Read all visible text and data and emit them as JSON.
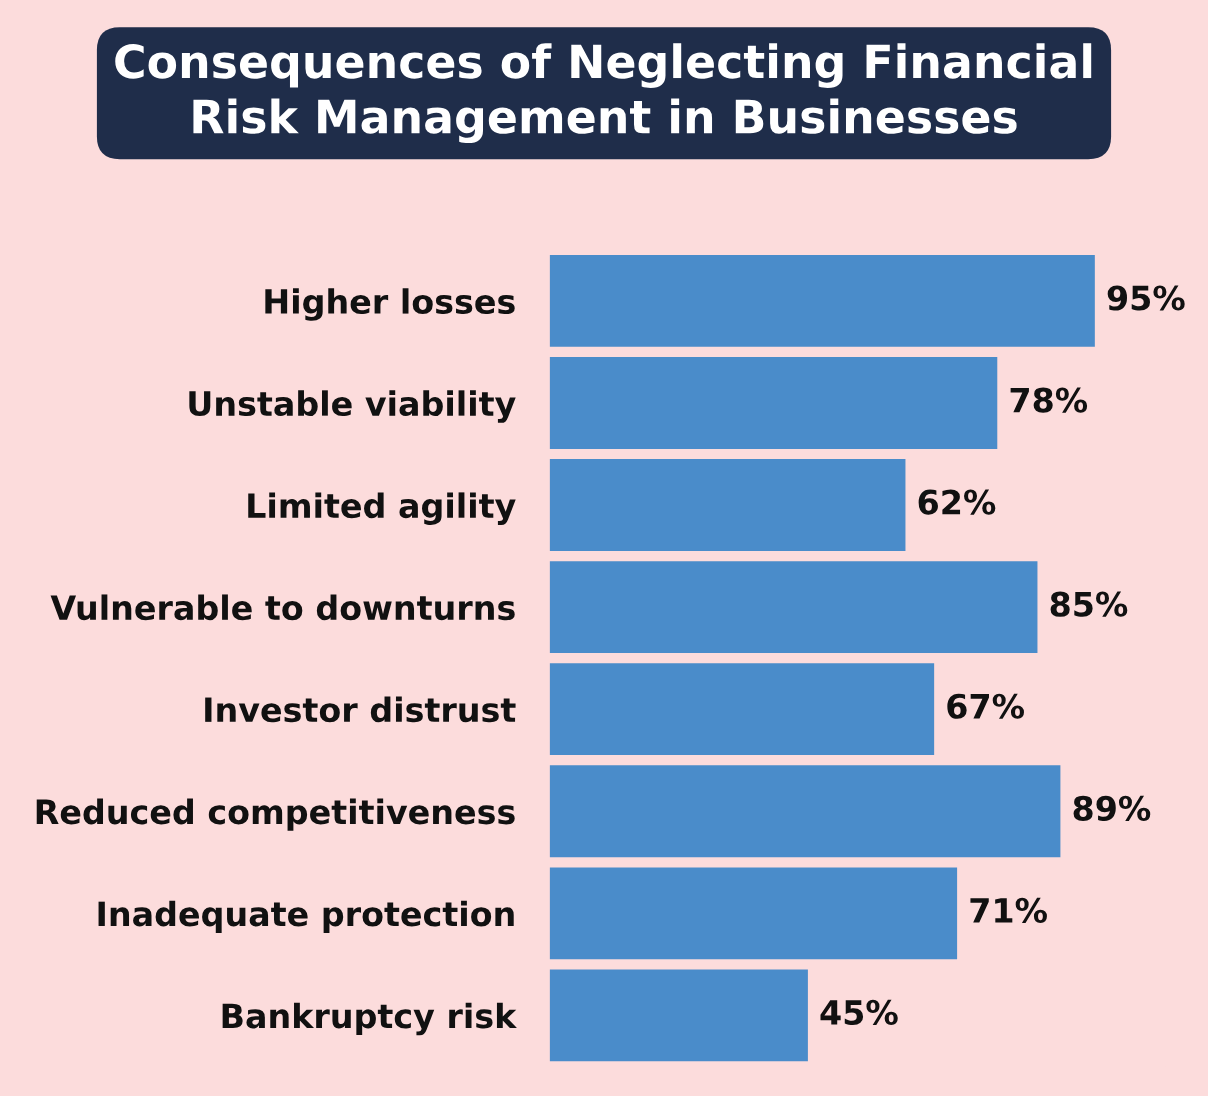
{
  "chart_data": {
    "type": "bar",
    "orientation": "horizontal",
    "tick_labels": "y",
    "title": "Consequences of Neglecting Financial\nRisk Management in Businesses",
    "categories": [
      "Higher losses",
      "Unstable viability",
      "Limited agility",
      "Vulnerable to downturns",
      "Investor distrust",
      "Reduced competitiveness",
      "Inadequate protection",
      "Bankruptcy risk"
    ],
    "values": [
      95,
      78,
      62,
      85,
      67,
      89,
      71,
      45
    ],
    "value_labels": [
      "95%",
      "78%",
      "62%",
      "85%",
      "67%",
      "89%",
      "71%",
      "45%"
    ],
    "color": "#4a8cca",
    "grid": false,
    "legend": false
  }
}
